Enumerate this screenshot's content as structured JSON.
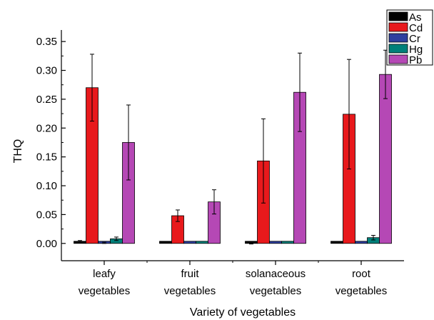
{
  "chart_data": {
    "type": "bar",
    "title": "",
    "xlabel": "Variety of vegetables",
    "ylabel": "THQ",
    "ylim": [
      -0.03,
      0.37
    ],
    "yticks": [
      "0.00",
      "0.05",
      "0.10",
      "0.15",
      "0.20",
      "0.25",
      "0.30",
      "0.35"
    ],
    "categories": [
      [
        "leafy",
        "vegetables"
      ],
      [
        "fruit",
        "vegetables"
      ],
      [
        "solanaceous",
        "vegetables"
      ],
      [
        "root",
        "vegetables"
      ]
    ],
    "legend_position": "top-right",
    "series": [
      {
        "name": "As",
        "color": "#000000",
        "values": [
          0.003,
          0.0,
          0.0,
          0.002
        ],
        "errors": [
          0.002,
          0.0,
          0.001,
          0.0
        ]
      },
      {
        "name": "Cd",
        "color": "#e8191c",
        "values": [
          0.27,
          0.048,
          0.143,
          0.224
        ],
        "errors": [
          0.058,
          0.01,
          0.073,
          0.095
        ]
      },
      {
        "name": "Cr",
        "color": "#2e3f9f",
        "values": [
          0.001,
          0.0,
          0.0,
          0.0
        ],
        "errors": [
          0.001,
          0.0,
          0.0,
          0.0
        ]
      },
      {
        "name": "Hg",
        "color": "#00807a",
        "values": [
          0.008,
          0.001,
          0.001,
          0.01
        ],
        "errors": [
          0.003,
          0.0,
          0.0,
          0.004
        ]
      },
      {
        "name": "Pb",
        "color": "#b548b5",
        "values": [
          0.175,
          0.072,
          0.262,
          0.293
        ],
        "errors": [
          0.065,
          0.021,
          0.068,
          0.042
        ]
      }
    ]
  }
}
